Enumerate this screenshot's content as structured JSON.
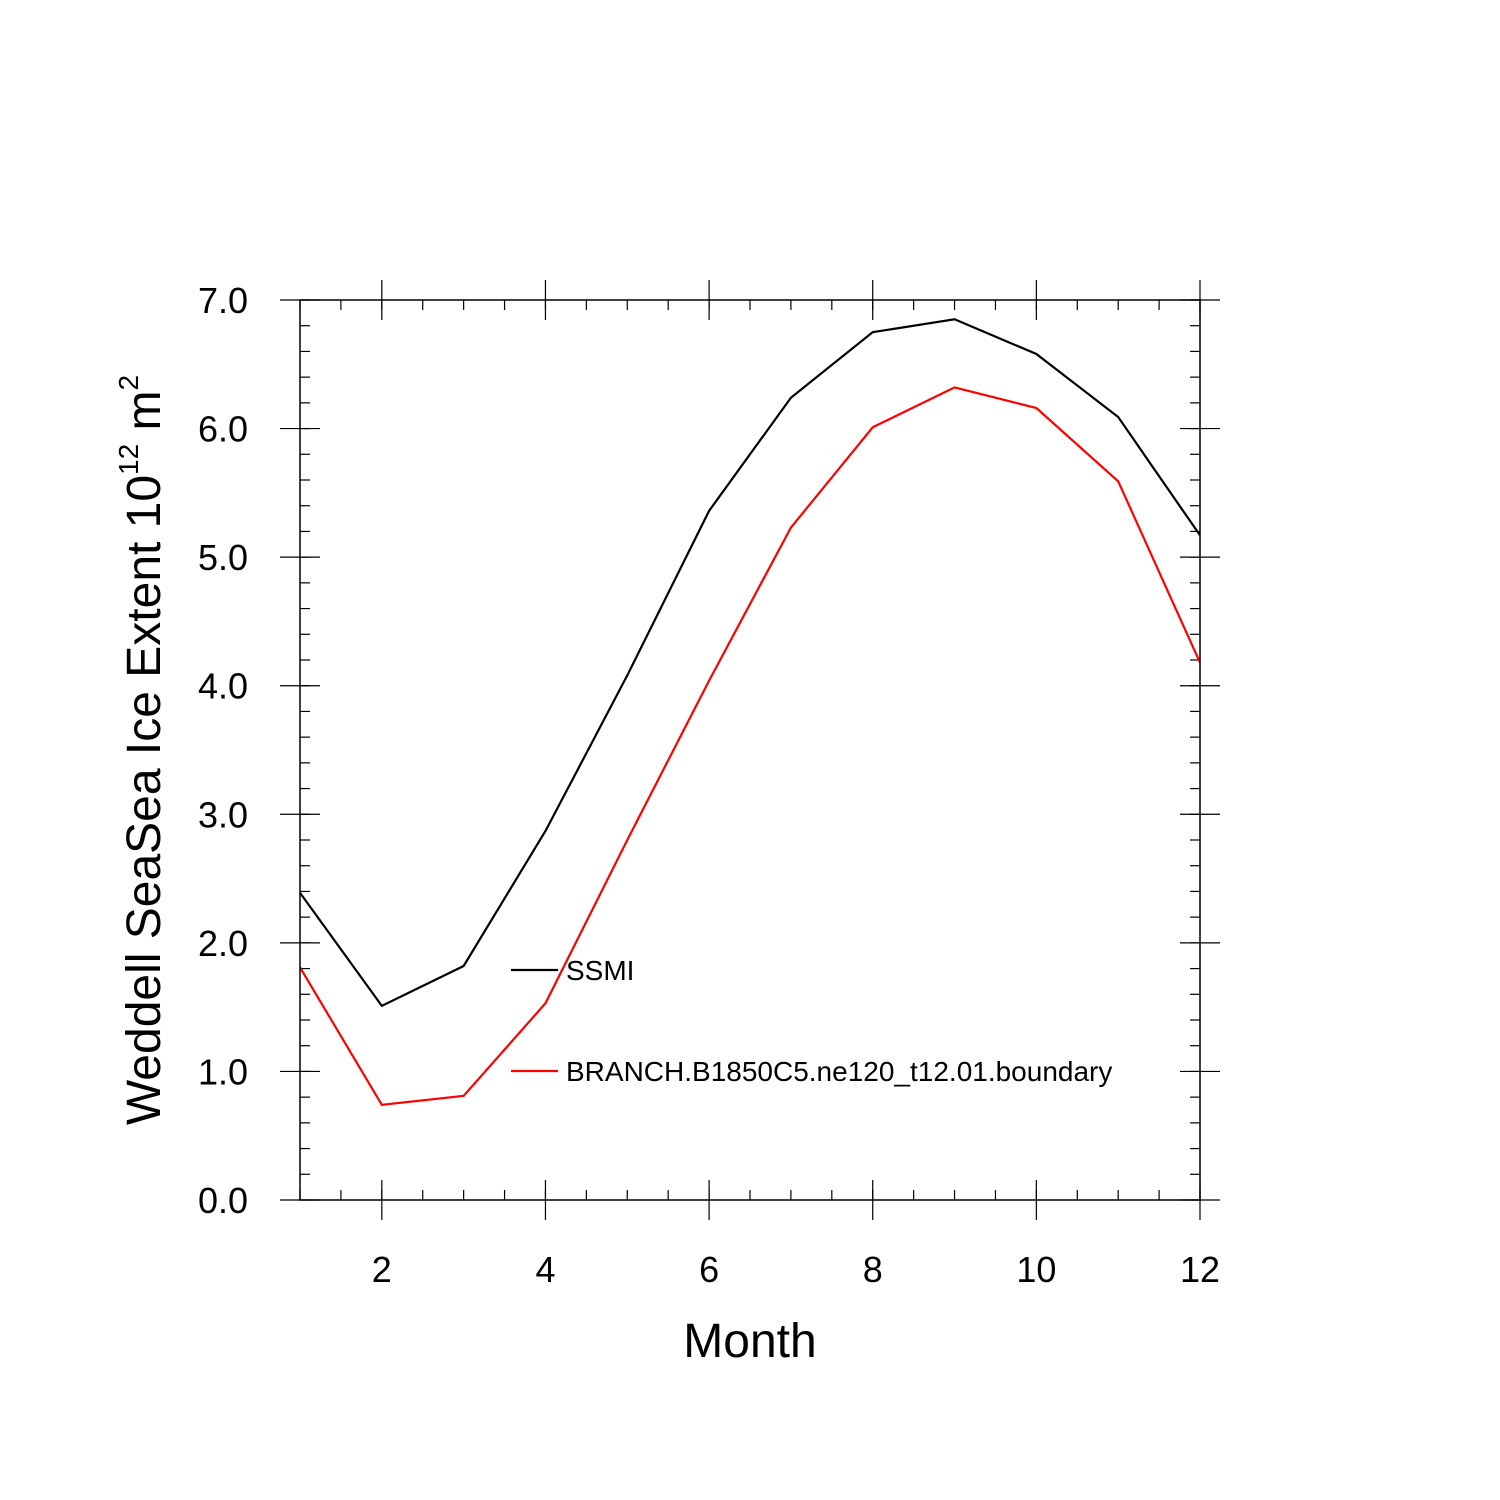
{
  "chart_data": {
    "type": "line",
    "title": "",
    "xlabel": "Month",
    "ylabel": {
      "prefix": "Weddell SeaSea Ice Extent 10",
      "sup1": "12",
      "mid": " m",
      "sup2": "2"
    },
    "xlim": [
      1,
      12
    ],
    "ylim": [
      0.0,
      7.0
    ],
    "x_ticks": [
      2,
      4,
      6,
      8,
      10,
      12
    ],
    "x_tick_labels": [
      "2",
      "4",
      "6",
      "8",
      "10",
      "12"
    ],
    "y_ticks": [
      0.0,
      1.0,
      2.0,
      3.0,
      4.0,
      5.0,
      6.0,
      7.0
    ],
    "y_tick_labels": [
      "0.0",
      "1.0",
      "2.0",
      "3.0",
      "4.0",
      "5.0",
      "6.0",
      "7.0"
    ],
    "grid": false,
    "legend_placement": "inside-lower-center",
    "x": [
      1,
      2,
      3,
      4,
      5,
      6,
      7,
      8,
      9,
      10,
      11,
      12
    ],
    "series": [
      {
        "name": "SSMI",
        "color": "#000000",
        "values": [
          2.39,
          1.51,
          1.82,
          2.87,
          4.08,
          5.36,
          6.24,
          6.75,
          6.85,
          6.58,
          6.09,
          5.17
        ]
      },
      {
        "name": "BRANCH.B1850C5.ne120_t12.01.boundary",
        "color": "#ff0000",
        "values": [
          1.81,
          0.74,
          0.81,
          1.53,
          2.8,
          4.04,
          5.23,
          6.01,
          6.32,
          6.16,
          5.59,
          4.18
        ]
      }
    ]
  }
}
